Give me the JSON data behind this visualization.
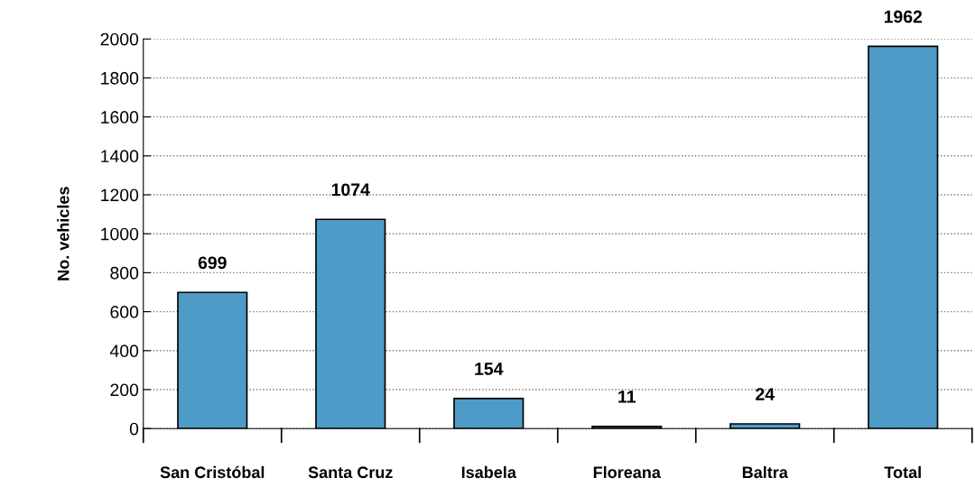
{
  "chart_data": {
    "type": "bar",
    "ylabel": "No. vehicles",
    "categories": [
      "San Cristóbal",
      "Santa Cruz",
      "Isabela",
      "Floreana",
      "Baltra",
      "Total"
    ],
    "values": [
      699,
      1074,
      154,
      11,
      24,
      1962
    ],
    "color": "#4f9bc7",
    "ylim": [
      0,
      2000
    ],
    "yticks": [
      0,
      200,
      400,
      600,
      800,
      1000,
      1200,
      1400,
      1600,
      1800,
      2000
    ],
    "grid": "y",
    "data_labels": true
  }
}
